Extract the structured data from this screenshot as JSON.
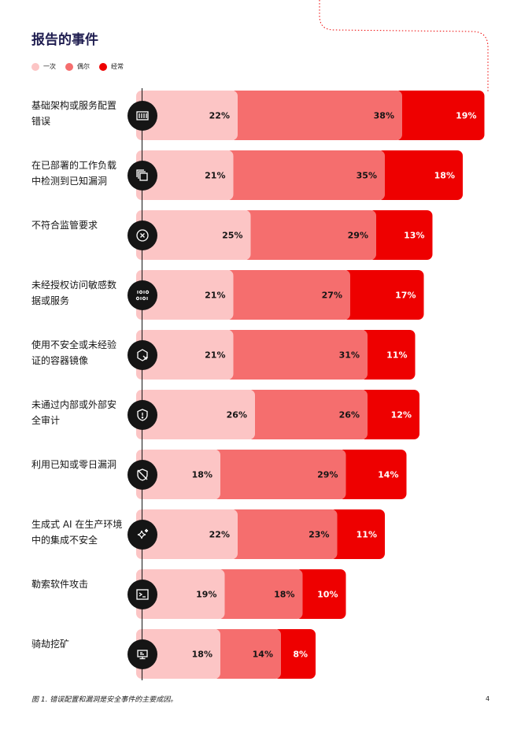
{
  "title": "报告的事件",
  "legend": [
    {
      "label": "一次",
      "color": "#fcc5c5"
    },
    {
      "label": "偶尔",
      "color": "#f56e6e"
    },
    {
      "label": "经常",
      "color": "#ee0000"
    }
  ],
  "rows": [
    {
      "label": "基础架构或服务配置错误",
      "icon": "server-rack-icon"
    },
    {
      "label": "在已部署的工作负载中检测到已知漏洞",
      "icon": "stacked-documents-icon"
    },
    {
      "label": "不符合监管要求",
      "icon": "x-circle-icon"
    },
    {
      "label": "未经授权访问敏感数据或服务",
      "icon": "binary-data-icon"
    },
    {
      "label": "使用不安全或未经验证的容器镜像",
      "icon": "container-hexagon-icon"
    },
    {
      "label": "未通过内部或外部安全审计",
      "icon": "shield-alert-icon"
    },
    {
      "label": "利用已知或零日漏洞",
      "icon": "shield-slash-icon"
    },
    {
      "label": "生成式 AI 在生产环境中的集成不安全",
      "icon": "ai-sparkle-icon"
    },
    {
      "label": "勒索软件攻击",
      "icon": "terminal-icon"
    },
    {
      "label": "骑劫挖矿",
      "icon": "monitor-icon"
    }
  ],
  "chart_data": {
    "type": "bar",
    "orientation": "horizontal",
    "stacked": true,
    "title": "报告的事件",
    "unit": "%",
    "categories": [
      "基础架构或服务配置错误",
      "在已部署的工作负载中检测到已知漏洞",
      "不符合监管要求",
      "未经授权访问敏感数据或服务",
      "使用不安全或未经验证的容器镜像",
      "未通过内部或外部安全审计",
      "利用已知或零日漏洞",
      "生成式 AI 在生产环境中的集成不安全",
      "勒索软件攻击",
      "骑劫挖矿"
    ],
    "series": [
      {
        "name": "一次",
        "color": "#fcc5c5",
        "values": [
          22,
          21,
          25,
          21,
          21,
          26,
          18,
          22,
          19,
          18
        ]
      },
      {
        "name": "偶尔",
        "color": "#f56e6e",
        "values": [
          38,
          35,
          29,
          27,
          31,
          26,
          29,
          23,
          18,
          14
        ]
      },
      {
        "name": "经常",
        "color": "#ee0000",
        "values": [
          19,
          18,
          13,
          17,
          11,
          12,
          14,
          11,
          10,
          8
        ]
      }
    ],
    "legend_position": "top-left",
    "grid": false
  },
  "caption": "图 1. 错误配置和漏洞是安全事件的主要成因。",
  "page_number": "4"
}
